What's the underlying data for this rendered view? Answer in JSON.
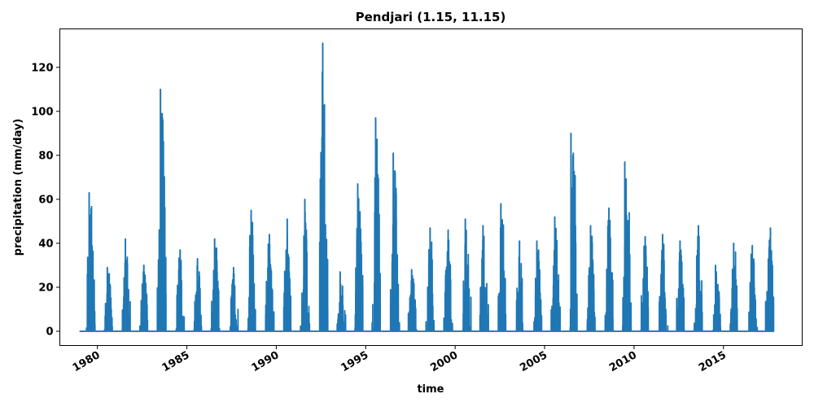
{
  "chart_data": {
    "type": "line",
    "title": "Pendjari (1.15, 11.15)",
    "xlabel": "time",
    "ylabel": "precipitation (mm/day)",
    "xlim": [
      1977.9,
      2019.4
    ],
    "ylim": [
      -6.5,
      137.5
    ],
    "x_ticks": [
      "1980",
      "1985",
      "1990",
      "1995",
      "2000",
      "2005",
      "2010",
      "2015"
    ],
    "y_ticks": [
      "0",
      "20",
      "40",
      "60",
      "80",
      "100",
      "120"
    ],
    "color": "#1f77b4",
    "grid": false,
    "legend": "none",
    "series": [
      {
        "annual_max_events": [
          {
            "date": "1979-07-15",
            "value": 63
          },
          {
            "date": "1980-07-20",
            "value": 29
          },
          {
            "date": "1981-07-25",
            "value": 42
          },
          {
            "date": "1982-08-05",
            "value": 30
          },
          {
            "date": "1983-07-10",
            "value": 110
          },
          {
            "date": "1984-08-15",
            "value": 37
          },
          {
            "date": "1985-08-05",
            "value": 33
          },
          {
            "date": "1986-07-20",
            "value": 42
          },
          {
            "date": "1987-08-10",
            "value": 29
          },
          {
            "date": "1988-08-05",
            "value": 55
          },
          {
            "date": "1989-08-10",
            "value": 44
          },
          {
            "date": "1990-08-10",
            "value": 51
          },
          {
            "date": "1991-08-05",
            "value": 60
          },
          {
            "date": "1992-08-05",
            "value": 131
          },
          {
            "date": "1993-07-25",
            "value": 27
          },
          {
            "date": "1994-07-20",
            "value": 67
          },
          {
            "date": "1995-07-20",
            "value": 97
          },
          {
            "date": "1996-07-15",
            "value": 81
          },
          {
            "date": "1997-07-25",
            "value": 28
          },
          {
            "date": "1998-08-05",
            "value": 47
          },
          {
            "date": "1999-08-10",
            "value": 46
          },
          {
            "date": "2000-07-25",
            "value": 51
          },
          {
            "date": "2001-07-20",
            "value": 48
          },
          {
            "date": "2002-07-20",
            "value": 58
          },
          {
            "date": "2003-08-05",
            "value": 41
          },
          {
            "date": "2004-07-25",
            "value": 41
          },
          {
            "date": "2005-07-25",
            "value": 52
          },
          {
            "date": "2006-06-20",
            "value": 90
          },
          {
            "date": "2007-07-25",
            "value": 48
          },
          {
            "date": "2008-08-05",
            "value": 56
          },
          {
            "date": "2009-06-25",
            "value": 77
          },
          {
            "date": "2010-08-15",
            "value": 43
          },
          {
            "date": "2011-08-05",
            "value": 44
          },
          {
            "date": "2012-07-25",
            "value": 41
          },
          {
            "date": "2013-08-05",
            "value": 48
          },
          {
            "date": "2014-07-20",
            "value": 30
          },
          {
            "date": "2015-07-25",
            "value": 40
          },
          {
            "date": "2016-08-10",
            "value": 39
          },
          {
            "date": "2017-08-15",
            "value": 47
          }
        ]
      }
    ]
  }
}
